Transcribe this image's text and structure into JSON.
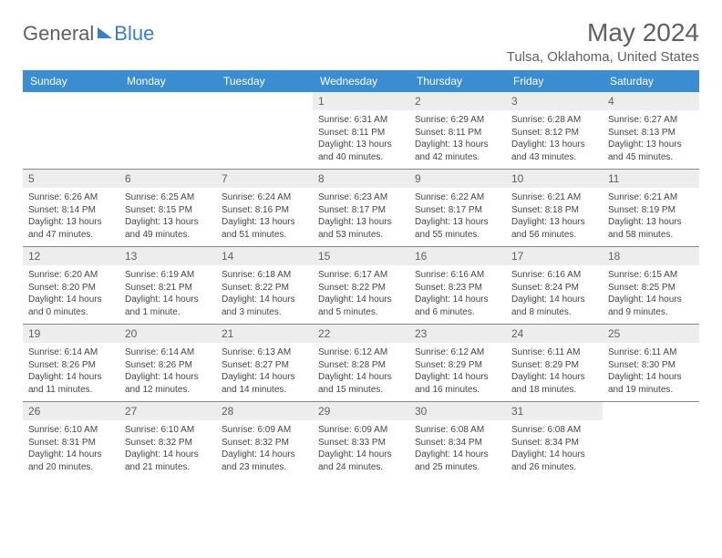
{
  "logo": {
    "part1": "General",
    "part2": "Blue"
  },
  "header": {
    "title": "May 2024",
    "location": "Tulsa, Oklahoma, United States"
  },
  "dayheaders": [
    "Sunday",
    "Monday",
    "Tuesday",
    "Wednesday",
    "Thursday",
    "Friday",
    "Saturday"
  ],
  "colors": {
    "header_bar": "#3a8dd0",
    "header_text": "#ffffff",
    "daynum_bg": "#ededed",
    "daynum_text": "#606060",
    "body_text": "#444444",
    "title_text": "#606060",
    "logo_accent": "#3a7fc4",
    "divider": "#888888",
    "background": "#ffffff"
  },
  "fontsize": {
    "title": 28,
    "subtitle": 15,
    "dayhead": 12,
    "daynum": 12,
    "sun": 10
  },
  "weeks": [
    [
      {
        "day": "",
        "lines": [
          "",
          "",
          "",
          ""
        ]
      },
      {
        "day": "",
        "lines": [
          "",
          "",
          "",
          ""
        ]
      },
      {
        "day": "",
        "lines": [
          "",
          "",
          "",
          ""
        ]
      },
      {
        "day": "1",
        "lines": [
          "Sunrise: 6:31 AM",
          "Sunset: 8:11 PM",
          "Daylight: 13 hours",
          "and 40 minutes."
        ]
      },
      {
        "day": "2",
        "lines": [
          "Sunrise: 6:29 AM",
          "Sunset: 8:11 PM",
          "Daylight: 13 hours",
          "and 42 minutes."
        ]
      },
      {
        "day": "3",
        "lines": [
          "Sunrise: 6:28 AM",
          "Sunset: 8:12 PM",
          "Daylight: 13 hours",
          "and 43 minutes."
        ]
      },
      {
        "day": "4",
        "lines": [
          "Sunrise: 6:27 AM",
          "Sunset: 8:13 PM",
          "Daylight: 13 hours",
          "and 45 minutes."
        ]
      }
    ],
    [
      {
        "day": "5",
        "lines": [
          "Sunrise: 6:26 AM",
          "Sunset: 8:14 PM",
          "Daylight: 13 hours",
          "and 47 minutes."
        ]
      },
      {
        "day": "6",
        "lines": [
          "Sunrise: 6:25 AM",
          "Sunset: 8:15 PM",
          "Daylight: 13 hours",
          "and 49 minutes."
        ]
      },
      {
        "day": "7",
        "lines": [
          "Sunrise: 6:24 AM",
          "Sunset: 8:16 PM",
          "Daylight: 13 hours",
          "and 51 minutes."
        ]
      },
      {
        "day": "8",
        "lines": [
          "Sunrise: 6:23 AM",
          "Sunset: 8:17 PM",
          "Daylight: 13 hours",
          "and 53 minutes."
        ]
      },
      {
        "day": "9",
        "lines": [
          "Sunrise: 6:22 AM",
          "Sunset: 8:17 PM",
          "Daylight: 13 hours",
          "and 55 minutes."
        ]
      },
      {
        "day": "10",
        "lines": [
          "Sunrise: 6:21 AM",
          "Sunset: 8:18 PM",
          "Daylight: 13 hours",
          "and 56 minutes."
        ]
      },
      {
        "day": "11",
        "lines": [
          "Sunrise: 6:21 AM",
          "Sunset: 8:19 PM",
          "Daylight: 13 hours",
          "and 58 minutes."
        ]
      }
    ],
    [
      {
        "day": "12",
        "lines": [
          "Sunrise: 6:20 AM",
          "Sunset: 8:20 PM",
          "Daylight: 14 hours",
          "and 0 minutes."
        ]
      },
      {
        "day": "13",
        "lines": [
          "Sunrise: 6:19 AM",
          "Sunset: 8:21 PM",
          "Daylight: 14 hours",
          "and 1 minute."
        ]
      },
      {
        "day": "14",
        "lines": [
          "Sunrise: 6:18 AM",
          "Sunset: 8:22 PM",
          "Daylight: 14 hours",
          "and 3 minutes."
        ]
      },
      {
        "day": "15",
        "lines": [
          "Sunrise: 6:17 AM",
          "Sunset: 8:22 PM",
          "Daylight: 14 hours",
          "and 5 minutes."
        ]
      },
      {
        "day": "16",
        "lines": [
          "Sunrise: 6:16 AM",
          "Sunset: 8:23 PM",
          "Daylight: 14 hours",
          "and 6 minutes."
        ]
      },
      {
        "day": "17",
        "lines": [
          "Sunrise: 6:16 AM",
          "Sunset: 8:24 PM",
          "Daylight: 14 hours",
          "and 8 minutes."
        ]
      },
      {
        "day": "18",
        "lines": [
          "Sunrise: 6:15 AM",
          "Sunset: 8:25 PM",
          "Daylight: 14 hours",
          "and 9 minutes."
        ]
      }
    ],
    [
      {
        "day": "19",
        "lines": [
          "Sunrise: 6:14 AM",
          "Sunset: 8:26 PM",
          "Daylight: 14 hours",
          "and 11 minutes."
        ]
      },
      {
        "day": "20",
        "lines": [
          "Sunrise: 6:14 AM",
          "Sunset: 8:26 PM",
          "Daylight: 14 hours",
          "and 12 minutes."
        ]
      },
      {
        "day": "21",
        "lines": [
          "Sunrise: 6:13 AM",
          "Sunset: 8:27 PM",
          "Daylight: 14 hours",
          "and 14 minutes."
        ]
      },
      {
        "day": "22",
        "lines": [
          "Sunrise: 6:12 AM",
          "Sunset: 8:28 PM",
          "Daylight: 14 hours",
          "and 15 minutes."
        ]
      },
      {
        "day": "23",
        "lines": [
          "Sunrise: 6:12 AM",
          "Sunset: 8:29 PM",
          "Daylight: 14 hours",
          "and 16 minutes."
        ]
      },
      {
        "day": "24",
        "lines": [
          "Sunrise: 6:11 AM",
          "Sunset: 8:29 PM",
          "Daylight: 14 hours",
          "and 18 minutes."
        ]
      },
      {
        "day": "25",
        "lines": [
          "Sunrise: 6:11 AM",
          "Sunset: 8:30 PM",
          "Daylight: 14 hours",
          "and 19 minutes."
        ]
      }
    ],
    [
      {
        "day": "26",
        "lines": [
          "Sunrise: 6:10 AM",
          "Sunset: 8:31 PM",
          "Daylight: 14 hours",
          "and 20 minutes."
        ]
      },
      {
        "day": "27",
        "lines": [
          "Sunrise: 6:10 AM",
          "Sunset: 8:32 PM",
          "Daylight: 14 hours",
          "and 21 minutes."
        ]
      },
      {
        "day": "28",
        "lines": [
          "Sunrise: 6:09 AM",
          "Sunset: 8:32 PM",
          "Daylight: 14 hours",
          "and 23 minutes."
        ]
      },
      {
        "day": "29",
        "lines": [
          "Sunrise: 6:09 AM",
          "Sunset: 8:33 PM",
          "Daylight: 14 hours",
          "and 24 minutes."
        ]
      },
      {
        "day": "30",
        "lines": [
          "Sunrise: 6:08 AM",
          "Sunset: 8:34 PM",
          "Daylight: 14 hours",
          "and 25 minutes."
        ]
      },
      {
        "day": "31",
        "lines": [
          "Sunrise: 6:08 AM",
          "Sunset: 8:34 PM",
          "Daylight: 14 hours",
          "and 26 minutes."
        ]
      },
      {
        "day": "",
        "lines": [
          "",
          "",
          "",
          ""
        ]
      }
    ]
  ]
}
